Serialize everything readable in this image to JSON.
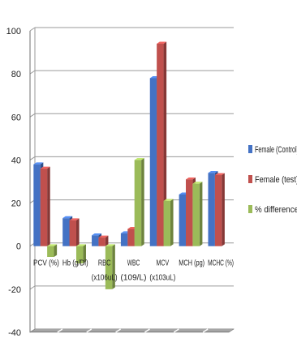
{
  "chart_data": {
    "type": "bar",
    "title": "",
    "xlabel": "",
    "ylabel": "",
    "categories": [
      [
        "PCV (%)"
      ],
      [
        "Hb (g/Dl)"
      ],
      [
        "RBC",
        "(x106uL)"
      ],
      [
        "WBC",
        "(109/L)"
      ],
      [
        "MCV",
        "(x103uL)"
      ],
      [
        "MCH (pg)"
      ],
      [
        "MCHC (%)"
      ]
    ],
    "series": [
      {
        "name": "Female (Control)",
        "color": "#4472C4",
        "values": [
          38,
          13,
          5,
          6,
          78,
          24,
          34
        ]
      },
      {
        "name": "Female (test)",
        "color": "#C0504D",
        "values": [
          36,
          12,
          4,
          8,
          94,
          31,
          33
        ]
      },
      {
        "name": "% difference",
        "color": "#9BBB59",
        "values": [
          -5,
          -8,
          -20,
          40,
          21,
          29,
          0
        ]
      }
    ],
    "ylim": [
      -40,
      100
    ],
    "yticks": [
      "-40",
      "-20",
      "0",
      "20",
      "40",
      "60",
      "80",
      "100"
    ],
    "grid": true,
    "legend_position": "right"
  }
}
